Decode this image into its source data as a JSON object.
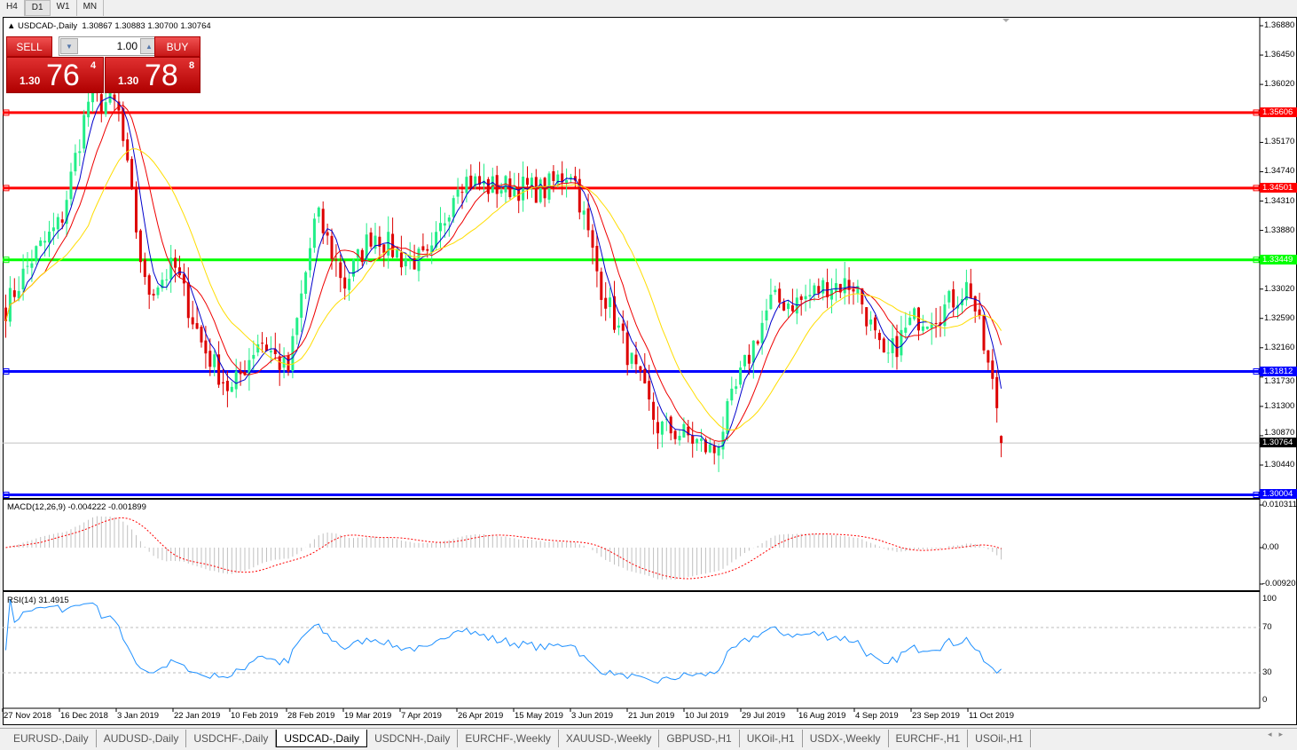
{
  "timeframes": [
    "H4",
    "D1",
    "W1",
    "MN"
  ],
  "active_timeframe": "D1",
  "header": {
    "symbol": "USDCAD-,Daily",
    "ohlc": "1.30867 1.30883 1.30700 1.30764"
  },
  "trade_panel": {
    "sell_label": "SELL",
    "buy_label": "BUY",
    "lots": "1.00",
    "sell_prefix": "1.30",
    "sell_big": "76",
    "sell_sup": "4",
    "buy_prefix": "1.30",
    "buy_big": "78",
    "buy_sup": "8"
  },
  "price_axis": [
    "1.36880",
    "1.36450",
    "1.36020",
    "1.35170",
    "1.34740",
    "1.34310",
    "1.33880",
    "1.33020",
    "1.32590",
    "1.32160",
    "1.31730",
    "1.31300",
    "1.30870",
    "1.30440"
  ],
  "levels": [
    {
      "price": "1.35606",
      "color": "#ff0000"
    },
    {
      "price": "1.34501",
      "color": "#ff0000"
    },
    {
      "price": "1.33449",
      "color": "#00ff00"
    },
    {
      "price": "1.31812",
      "color": "#0000ff"
    },
    {
      "price": "1.30004",
      "color": "#0000ff"
    }
  ],
  "current_price": "1.30764",
  "macd": {
    "label": "MACD(12,26,9) -0.004222 -0.001899",
    "axis": [
      "0.010311",
      "0.00",
      "-0.009203"
    ]
  },
  "rsi": {
    "label": "RSI(14) 31.4915",
    "axis": [
      "100",
      "70",
      "30",
      "0"
    ]
  },
  "date_axis": [
    "27 Nov 2018",
    "16 Dec 2018",
    "3 Jan 2019",
    "22 Jan 2019",
    "10 Feb 2019",
    "28 Feb 2019",
    "19 Mar 2019",
    "7 Apr 2019",
    "26 Apr 2019",
    "15 May 2019",
    "3 Jun 2019",
    "21 Jun 2019",
    "10 Jul 2019",
    "29 Jul 2019",
    "16 Aug 2019",
    "4 Sep 2019",
    "23 Sep 2019",
    "11 Oct 2019"
  ],
  "tabs": [
    "EURUSD-,Daily",
    "AUDUSD-,Daily",
    "USDCHF-,Daily",
    "USDCAD-,Daily",
    "USDCNH-,Daily",
    "EURCHF-,Weekly",
    "XAUUSD-,Weekly",
    "GBPUSD-,H1",
    "UKOil-,H1",
    "USDX-,Weekly",
    "EURCHF-,H1",
    "USOil-,H1"
  ],
  "active_tab": "USDCAD-,Daily",
  "colors": {
    "bull": "#22ee88",
    "bear": "#dd0000",
    "ma_fast": "#0000cc",
    "ma_mid": "#ee0000",
    "ma_slow": "#ffdd00",
    "macd_hist": "#c0c0c0",
    "macd_signal": "#ff0000",
    "rsi": "#1e90ff"
  },
  "chart_data": {
    "type": "candlestick",
    "symbol": "USDCAD",
    "ylim": [
      1.2995,
      1.37
    ],
    "approx_closes": [
      1.327,
      1.3348,
      1.34,
      1.3583,
      1.357,
      1.3296,
      1.3335,
      1.3218,
      1.315,
      1.3231,
      1.3179,
      1.3413,
      1.3309,
      1.3387,
      1.3348,
      1.3342,
      1.3466,
      1.3452,
      1.3452,
      1.3446,
      1.3479,
      1.3309,
      1.3205,
      1.3101,
      1.3088,
      1.3062,
      1.3179,
      1.3283,
      1.3283,
      1.3309,
      1.3309,
      1.3192,
      1.3257,
      1.327,
      1.3309,
      1.3127,
      1.30764
    ]
  }
}
